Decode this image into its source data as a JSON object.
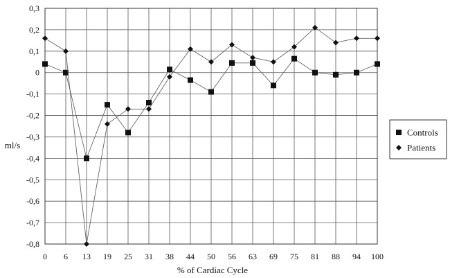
{
  "chart_data": {
    "type": "line",
    "xlabel": "% of Cardiac Cycle",
    "ylabel": "ml/s",
    "categories": [
      "0",
      "6",
      "13",
      "19",
      "25",
      "31",
      "38",
      "44",
      "50",
      "56",
      "63",
      "69",
      "75",
      "81",
      "88",
      "94",
      "100"
    ],
    "ylim": [
      -0.8,
      0.3
    ],
    "yticks": [
      0.3,
      0.2,
      0.1,
      0,
      -0.1,
      -0.2,
      -0.3,
      -0.4,
      -0.5,
      -0.6,
      -0.7,
      -0.8
    ],
    "ytick_labels": [
      "0,3",
      "0,2",
      "0,1",
      "0",
      "-0,1",
      "-0,2",
      "-0,3",
      "-0,4",
      "-0,5",
      "-0,6",
      "-0,7",
      "-0,8"
    ],
    "grid": true,
    "legend_position": "right",
    "series": [
      {
        "name": "Controls",
        "marker": "square",
        "color": "#111111",
        "values": [
          0.04,
          0.0,
          -0.4,
          -0.15,
          -0.28,
          -0.14,
          0.015,
          -0.035,
          -0.09,
          0.045,
          0.045,
          -0.06,
          0.065,
          0.0,
          -0.01,
          0.0,
          0.04
        ]
      },
      {
        "name": "Patients",
        "marker": "diamond",
        "color": "#111111",
        "values": [
          0.16,
          0.1,
          -0.8,
          -0.24,
          -0.17,
          -0.17,
          -0.02,
          0.11,
          0.05,
          0.13,
          0.07,
          0.05,
          0.12,
          0.21,
          0.14,
          0.16,
          0.16
        ]
      }
    ]
  }
}
